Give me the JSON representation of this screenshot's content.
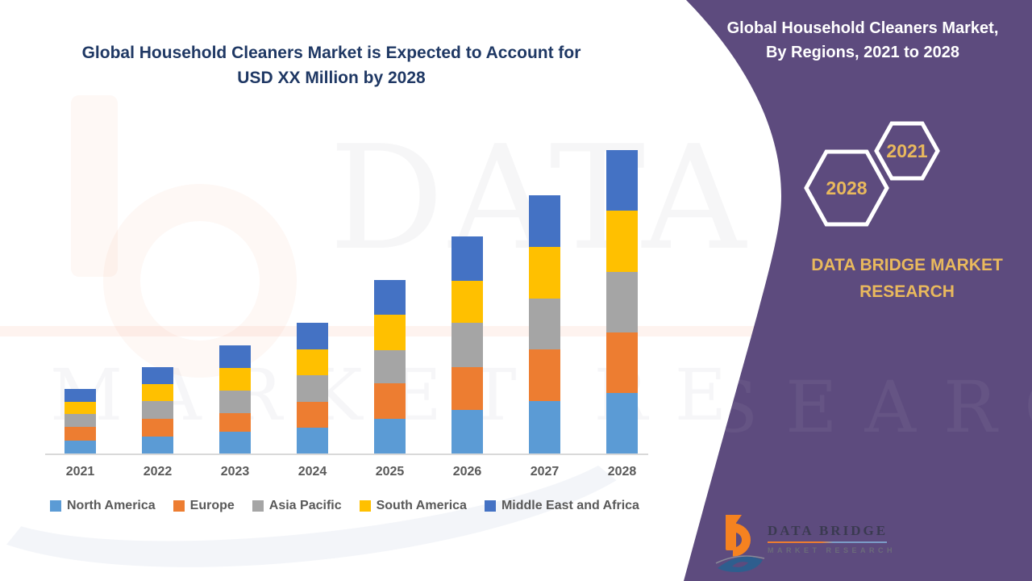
{
  "header": {
    "title_line1": "Global Household Cleaners Market is Expected to Account for",
    "title_line2": "USD XX Million by 2028"
  },
  "side_panel": {
    "heading_line1": "Global Household Cleaners Market,",
    "heading_line2": "By Regions, 2021 to 2028",
    "hexagon_back_label": "2028",
    "hexagon_front_label": "2021",
    "brand_line1": "DATA BRIDGE MARKET",
    "brand_line2": "RESEARCH",
    "panel_color": "#5D4B7E",
    "gold_color": "#E9B95D"
  },
  "logo": {
    "name": "DATA BRIDGE",
    "subtitle": "MARKET RESEARCH"
  },
  "watermark": {
    "line1": "DATA BRIDGE",
    "line2": "MARKET RESEARCH"
  },
  "chart_data": {
    "type": "bar",
    "stacked": true,
    "title": "Global Household Cleaners Market is Expected to Account for USD XX Million by 2028",
    "xlabel": "",
    "ylabel": "",
    "value_axis_visible": false,
    "units": "relative height units; actual market values are masked as 'USD XX Million'",
    "legend_position": "bottom",
    "grid": false,
    "categories": [
      "2021",
      "2022",
      "2023",
      "2024",
      "2025",
      "2026",
      "2027",
      "2028"
    ],
    "series": [
      {
        "name": "North America",
        "color": "#5B9BD5",
        "values": [
          16,
          21.5,
          27,
          32,
          43,
          54,
          65,
          75
        ]
      },
      {
        "name": "Europe",
        "color": "#ED7D31",
        "values": [
          17,
          21.5,
          23,
          32.5,
          44,
          53,
          64,
          75
        ]
      },
      {
        "name": "Asia Pacific",
        "color": "#A5A5A5",
        "values": [
          16,
          22,
          28,
          32.5,
          41,
          55,
          63,
          75
        ]
      },
      {
        "name": "South America",
        "color": "#FFC000",
        "values": [
          15,
          21,
          28,
          32,
          44,
          52,
          64,
          76
        ]
      },
      {
        "name": "Middle East and Africa",
        "color": "#4472C4",
        "values": [
          16,
          21,
          28,
          33,
          43,
          55,
          64,
          75
        ]
      }
    ],
    "bar_totals": [
      80,
      107,
      134,
      162,
      215,
      269,
      320,
      376
    ]
  }
}
